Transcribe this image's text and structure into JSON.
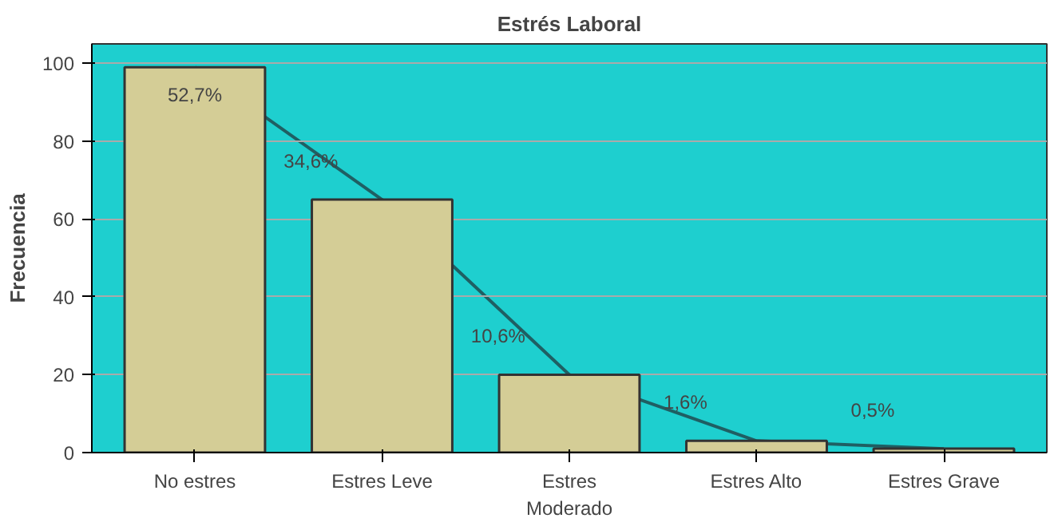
{
  "chart_data": {
    "type": "bar",
    "title": "Estrés Laboral",
    "ylabel": "Frecuencia",
    "categories": [
      "No estres",
      "Estres Leve",
      "Estres Moderado",
      "Estres Alto",
      "Estres Grave"
    ],
    "series": [
      {
        "color": "#d4cd96",
        "values": [
          99,
          65,
          20,
          3,
          1
        ]
      },
      {
        "type": "line",
        "color": "#1f5f63",
        "values": [
          99,
          65,
          20,
          3,
          1
        ]
      }
    ],
    "annotations": [
      {
        "text": "52,7%",
        "x": "No estres",
        "y": 99
      },
      {
        "text": "34,6%",
        "x": "Estres Leve",
        "y": 65
      },
      {
        "text": "10,6%",
        "x": "Estres Moderado",
        "y": 20
      },
      {
        "text": "1,6%",
        "x": "Estres Alto",
        "y": 3
      },
      {
        "text": "0,5%",
        "x": "Estres Grave",
        "y": 1
      }
    ],
    "ylim": [
      0,
      105
    ],
    "yticks": [
      0,
      20,
      40,
      60,
      80,
      100
    ],
    "grid": "y"
  }
}
